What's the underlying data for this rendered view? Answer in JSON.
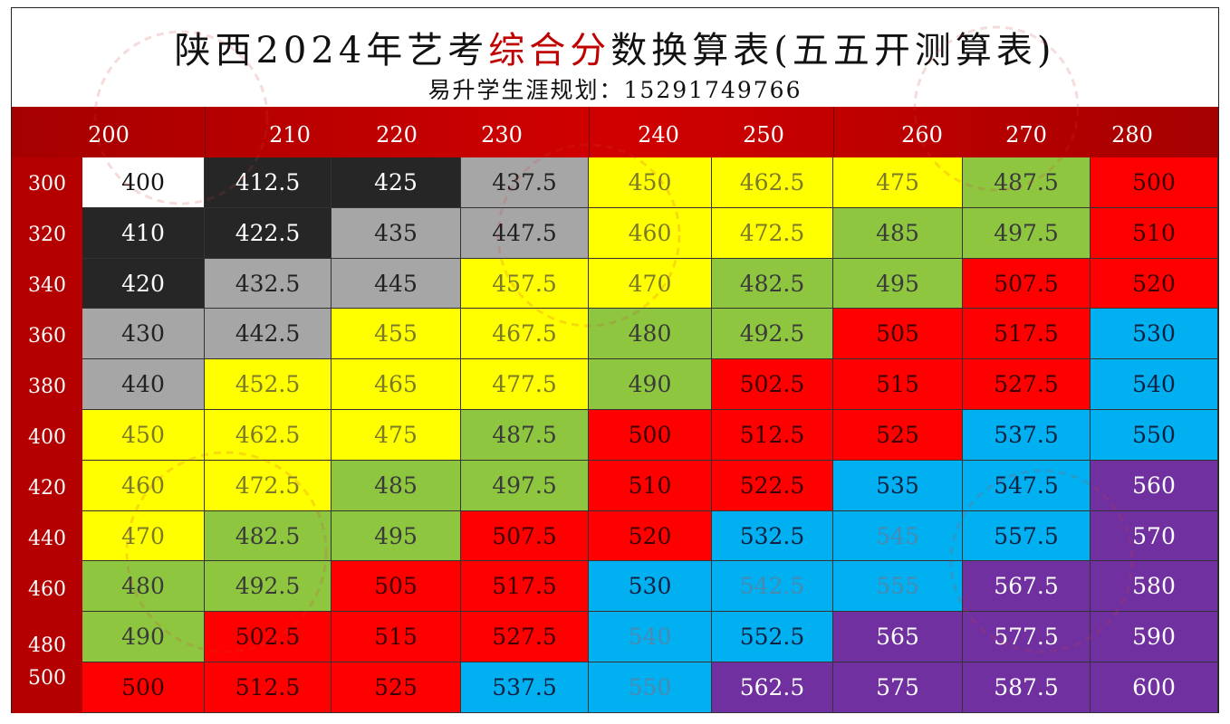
{
  "title": {
    "part1": "陕西2024年艺考",
    "highlight": "综合分",
    "part2": "数换算表(五五开测算表)",
    "subtitle": "易升学生涯规划：15291749766"
  },
  "colors": {
    "header_red": "#c00000",
    "white": "#ffffff",
    "black": "#262626",
    "gray": "#a6a6a6",
    "yellow": "#ffff00",
    "green": "#8ec63f",
    "red": "#ff0000",
    "blue": "#00b0f0",
    "purple": "#7030a0"
  },
  "column_headers": [
    "200",
    "210",
    "220",
    "230",
    "240",
    "250",
    "260",
    "270",
    "280"
  ],
  "row_headers": [
    "300",
    "320",
    "340",
    "360",
    "380",
    "400",
    "420",
    "440",
    "460",
    "480",
    "500"
  ],
  "rows": [
    {
      "values": [
        "400",
        "412.5",
        "425",
        "437.5",
        "450",
        "462.5",
        "475",
        "487.5",
        "500"
      ],
      "colors": [
        "white",
        "black",
        "black",
        "gray",
        "yellow",
        "yellow",
        "yellow",
        "green",
        "red"
      ]
    },
    {
      "values": [
        "410",
        "422.5",
        "435",
        "447.5",
        "460",
        "472.5",
        "485",
        "497.5",
        "510"
      ],
      "colors": [
        "black",
        "black",
        "gray",
        "gray",
        "yellow",
        "yellow",
        "green",
        "green",
        "red"
      ]
    },
    {
      "values": [
        "420",
        "432.5",
        "445",
        "457.5",
        "470",
        "482.5",
        "495",
        "507.5",
        "520"
      ],
      "colors": [
        "black",
        "gray",
        "gray",
        "yellow",
        "yellow",
        "green",
        "green",
        "red",
        "red"
      ]
    },
    {
      "values": [
        "430",
        "442.5",
        "455",
        "467.5",
        "480",
        "492.5",
        "505",
        "517.5",
        "530"
      ],
      "colors": [
        "gray",
        "gray",
        "yellow",
        "yellow",
        "green",
        "green",
        "red",
        "red",
        "blue"
      ]
    },
    {
      "values": [
        "440",
        "452.5",
        "465",
        "477.5",
        "490",
        "502.5",
        "515",
        "527.5",
        "540"
      ],
      "colors": [
        "gray",
        "yellow",
        "yellow",
        "yellow",
        "green",
        "red",
        "red",
        "red",
        "blue"
      ]
    },
    {
      "values": [
        "450",
        "462.5",
        "475",
        "487.5",
        "500",
        "512.5",
        "525",
        "537.5",
        "550"
      ],
      "colors": [
        "yellow",
        "yellow",
        "yellow",
        "green",
        "red",
        "red",
        "red",
        "blue",
        "blue"
      ]
    },
    {
      "values": [
        "460",
        "472.5",
        "485",
        "497.5",
        "510",
        "522.5",
        "535",
        "547.5",
        "560"
      ],
      "colors": [
        "yellow",
        "yellow",
        "green",
        "green",
        "red",
        "red",
        "blue",
        "blue",
        "purple"
      ]
    },
    {
      "values": [
        "470",
        "482.5",
        "495",
        "507.5",
        "520",
        "532.5",
        "545",
        "557.5",
        "570"
      ],
      "colors": [
        "yellow",
        "green",
        "green",
        "red",
        "red",
        "blue",
        "blue2",
        "blue",
        "purple"
      ]
    },
    {
      "values": [
        "480",
        "492.5",
        "505",
        "517.5",
        "530",
        "542.5",
        "555",
        "567.5",
        "580"
      ],
      "colors": [
        "green",
        "green",
        "red",
        "red",
        "blue",
        "blue2",
        "blue2",
        "purple",
        "purple"
      ]
    },
    {
      "values": [
        "490",
        "502.5",
        "515",
        "527.5",
        "540",
        "552.5",
        "565",
        "577.5",
        "590"
      ],
      "colors": [
        "green",
        "red",
        "red",
        "red",
        "blue2",
        "blue",
        "purple",
        "purple",
        "purple"
      ]
    },
    {
      "values": [
        "500",
        "512.5",
        "525",
        "537.5",
        "550",
        "562.5",
        "575",
        "587.5",
        "600"
      ],
      "colors": [
        "red",
        "red",
        "red",
        "blue",
        "blue2",
        "purple",
        "purple",
        "purple",
        "purple"
      ]
    }
  ]
}
